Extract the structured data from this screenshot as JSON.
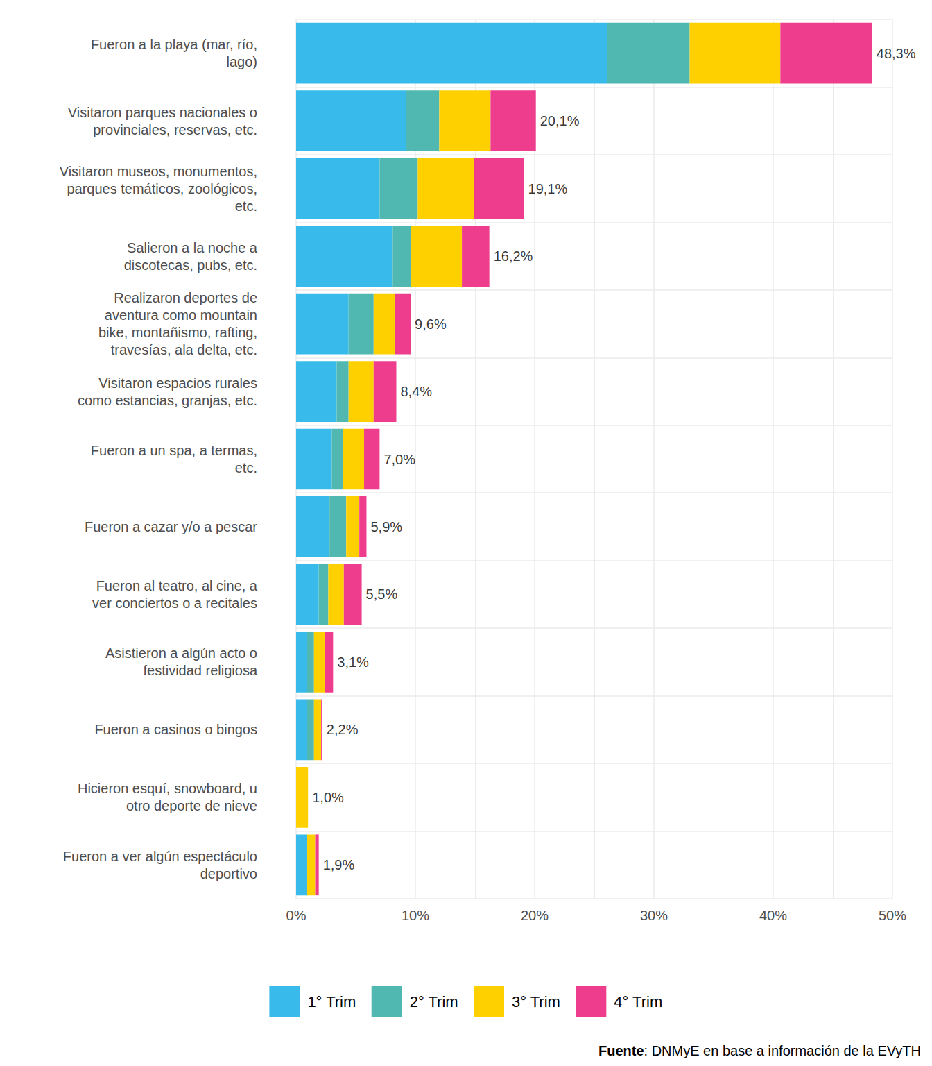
{
  "chart_data": {
    "type": "bar",
    "orientation": "horizontal",
    "stacked": true,
    "grid": true,
    "legend": "bottom",
    "categories": [
      "Fueron a la playa (mar, río,\nlago)",
      "Visitaron parques nacionales o\nprovinciales, reservas, etc.",
      "Visitaron museos, monumentos,\nparques temáticos, zoológicos,\netc.",
      "Salieron a la noche a\ndiscotecas, pubs, etc.",
      "Realizaron deportes de\naventura como mountain\nbike, montañismo, rafting,\ntravesías, ala delta, etc.",
      "Visitaron espacios rurales\ncomo estancias, granjas, etc.",
      "Fueron a un spa, a termas,\netc.",
      "Fueron a cazar y/o a pescar",
      "Fueron al teatro, al cine, a\nver conciertos o a recitales",
      "Asistieron a algún acto o\nfestividad religiosa",
      "Fueron a casinos o bingos",
      "Hicieron esquí, snowboard, u\notro deporte de nieve",
      "Fueron a ver algún espectáculo\ndeportivo"
    ],
    "series": [
      {
        "name": "1° Trim",
        "color": "#38bbea",
        "values": [
          26.1,
          9.2,
          7.0,
          8.1,
          4.4,
          3.4,
          3.0,
          2.8,
          1.9,
          0.9,
          0.9,
          0.0,
          0.9
        ]
      },
      {
        "name": "2° Trim",
        "color": "#50b8b0",
        "values": [
          6.9,
          2.8,
          3.2,
          1.5,
          2.1,
          1.0,
          0.9,
          1.4,
          0.8,
          0.6,
          0.6,
          0.0,
          0.0
        ]
      },
      {
        "name": "3° Trim",
        "color": "#ffd000",
        "values": [
          7.6,
          4.3,
          4.7,
          4.3,
          1.8,
          2.1,
          1.8,
          1.1,
          1.3,
          0.9,
          0.6,
          1.0,
          0.7
        ]
      },
      {
        "name": "4° Trim",
        "color": "#ee3d8c",
        "values": [
          7.7,
          3.8,
          4.2,
          2.3,
          1.3,
          1.9,
          1.3,
          0.6,
          1.5,
          0.7,
          0.1,
          0.0,
          0.3
        ]
      }
    ],
    "totals": [
      48.3,
      20.1,
      19.1,
      16.2,
      9.6,
      8.4,
      7.0,
      5.9,
      5.5,
      3.1,
      2.2,
      1.0,
      1.9
    ],
    "total_labels": [
      "48,3%",
      "20,1%",
      "19,1%",
      "16,2%",
      "9,6%",
      "8,4%",
      "7,0%",
      "5,9%",
      "5,5%",
      "3,1%",
      "2,2%",
      "1,0%",
      "1,9%"
    ],
    "xlim": [
      0,
      50
    ],
    "xticks": [
      {
        "value": 0,
        "label": "0%"
      },
      {
        "value": 10,
        "label": "10%"
      },
      {
        "value": 20,
        "label": "20%"
      },
      {
        "value": 30,
        "label": "30%"
      },
      {
        "value": 40,
        "label": "40%"
      },
      {
        "value": 50,
        "label": "50%"
      }
    ],
    "caption": "Fuente: DNMyE en base a información de la EVyTH"
  }
}
